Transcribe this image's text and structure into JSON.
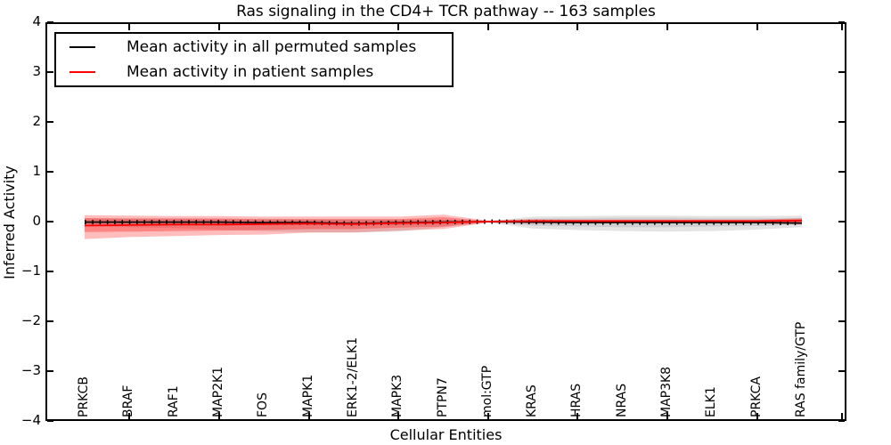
{
  "title": "Ras signaling in the CD4+ TCR pathway -- 163 samples",
  "xlabel": "Cellular Entities",
  "ylabel": "Inferred Activity",
  "legend": {
    "permuted_label": "Mean activity in all permuted samples",
    "patient_label": "Mean activity in patient samples"
  },
  "colors": {
    "permuted_line": "#000000",
    "patient_line": "#ff0000",
    "permuted_band": "#808080",
    "patient_band": "#ff0000",
    "axis": "#000000"
  },
  "chart_data": {
    "type": "line",
    "title": "Ras signaling in the CD4+ TCR pathway -- 163 samples",
    "xlabel": "Cellular Entities",
    "ylabel": "Inferred Activity",
    "ylim": [
      -4,
      4
    ],
    "ytick_values": [
      4,
      3,
      2,
      1,
      0,
      -1,
      -2,
      -3,
      -4
    ],
    "ytick_labels": [
      "4",
      "3",
      "2",
      "1",
      "0",
      "−1",
      "−2",
      "−3",
      "−4"
    ],
    "grid": false,
    "legend_position": "upper left",
    "categories": [
      "PRKCB",
      "BRAF",
      "RAF1",
      "MAP2K1",
      "FOS",
      "MAPK1",
      "ERK1-2/ELK1",
      "MAPK3",
      "PTPN7",
      "mol:GTP",
      "KRAS",
      "HRAS",
      "NRAS",
      "MAP3K8",
      "ELK1",
      "PRKCA",
      "RAS family/GTP"
    ],
    "xtick_marks_at_category_index": [
      1,
      3,
      5,
      7,
      9,
      11,
      13,
      15
    ],
    "series": [
      {
        "name": "Mean activity in all permuted samples",
        "color": "#000000",
        "style": "solid line with dotted marker overlay",
        "values": [
          -0.01,
          -0.01,
          -0.01,
          -0.01,
          -0.02,
          -0.02,
          -0.04,
          -0.02,
          -0.01,
          0.0,
          -0.01,
          -0.02,
          -0.02,
          -0.02,
          -0.02,
          -0.02,
          -0.03
        ],
        "band_inner_upper": [
          0.04,
          0.04,
          0.04,
          0.04,
          0.03,
          0.03,
          0.03,
          0.03,
          0.03,
          0.01,
          0.06,
          0.07,
          0.08,
          0.08,
          0.07,
          0.07,
          0.07
        ],
        "band_inner_lower": [
          -0.05,
          -0.05,
          -0.05,
          -0.05,
          -0.06,
          -0.07,
          -0.07,
          -0.06,
          -0.04,
          -0.01,
          -0.08,
          -0.1,
          -0.11,
          -0.11,
          -0.1,
          -0.09,
          -0.06
        ],
        "band_outer_upper": [
          0.07,
          0.07,
          0.07,
          0.06,
          0.06,
          0.05,
          0.05,
          0.05,
          0.04,
          0.01,
          0.1,
          0.11,
          0.12,
          0.12,
          0.11,
          0.11,
          0.12
        ],
        "band_outer_lower": [
          -0.09,
          -0.11,
          -0.13,
          -0.16,
          -0.19,
          -0.22,
          -0.22,
          -0.2,
          -0.11,
          -0.02,
          -0.14,
          -0.17,
          -0.19,
          -0.2,
          -0.19,
          -0.16,
          -0.11
        ]
      },
      {
        "name": "Mean activity in patient samples",
        "color": "#ff0000",
        "style": "solid line with shaded band",
        "values": [
          -0.08,
          -0.07,
          -0.06,
          -0.06,
          -0.05,
          -0.04,
          -0.05,
          -0.03,
          -0.02,
          0.0,
          0.01,
          0.01,
          0.01,
          0.01,
          0.01,
          0.01,
          0.02
        ],
        "band_inner_upper": [
          0.07,
          0.06,
          0.06,
          0.06,
          0.05,
          0.05,
          0.05,
          0.05,
          0.09,
          0.01,
          0.03,
          0.03,
          0.03,
          0.03,
          0.03,
          0.03,
          0.05
        ],
        "band_inner_lower": [
          -0.21,
          -0.2,
          -0.19,
          -0.18,
          -0.17,
          -0.15,
          -0.15,
          -0.12,
          -0.1,
          -0.01,
          -0.02,
          -0.02,
          -0.02,
          -0.02,
          -0.02,
          -0.02,
          -0.03
        ],
        "band_outer_upper": [
          0.13,
          0.12,
          0.11,
          0.11,
          0.1,
          0.1,
          0.1,
          0.1,
          0.14,
          0.02,
          0.05,
          0.04,
          0.04,
          0.04,
          0.04,
          0.04,
          0.07
        ],
        "band_outer_lower": [
          -0.35,
          -0.31,
          -0.29,
          -0.27,
          -0.26,
          -0.22,
          -0.22,
          -0.18,
          -0.15,
          -0.02,
          -0.04,
          -0.03,
          -0.03,
          -0.03,
          -0.03,
          -0.03,
          -0.06
        ]
      }
    ]
  }
}
